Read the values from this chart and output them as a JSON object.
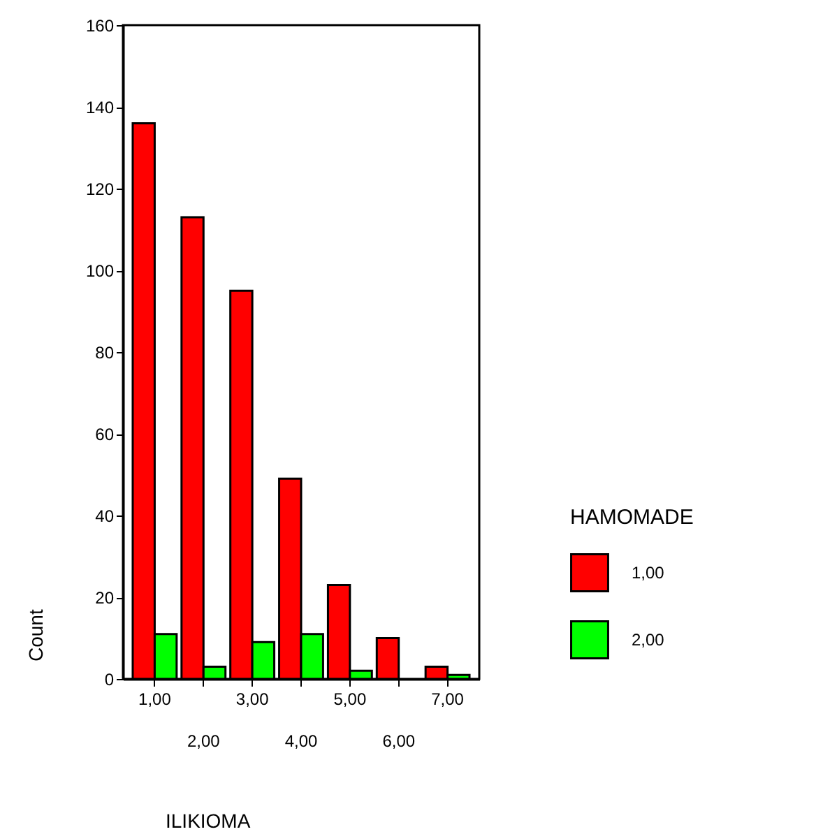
{
  "chart_data": {
    "type": "bar",
    "xlabel": "ILIKIOMA",
    "ylabel": "Count",
    "legend_title": "HAMOMADE",
    "categories": [
      "1,00",
      "2,00",
      "3,00",
      "4,00",
      "5,00",
      "6,00",
      "7,00"
    ],
    "series": [
      {
        "name": "1,00",
        "color": "#ff0000",
        "values": [
          136,
          113,
          95,
          49,
          23,
          10,
          3
        ]
      },
      {
        "name": "2,00",
        "color": "#00ff00",
        "values": [
          11,
          3,
          9,
          11,
          2,
          null,
          1
        ]
      }
    ],
    "ylim": [
      0,
      160
    ],
    "yticks": [
      0,
      20,
      40,
      60,
      80,
      100,
      120,
      140,
      160
    ],
    "grid": false,
    "legend": "right"
  }
}
